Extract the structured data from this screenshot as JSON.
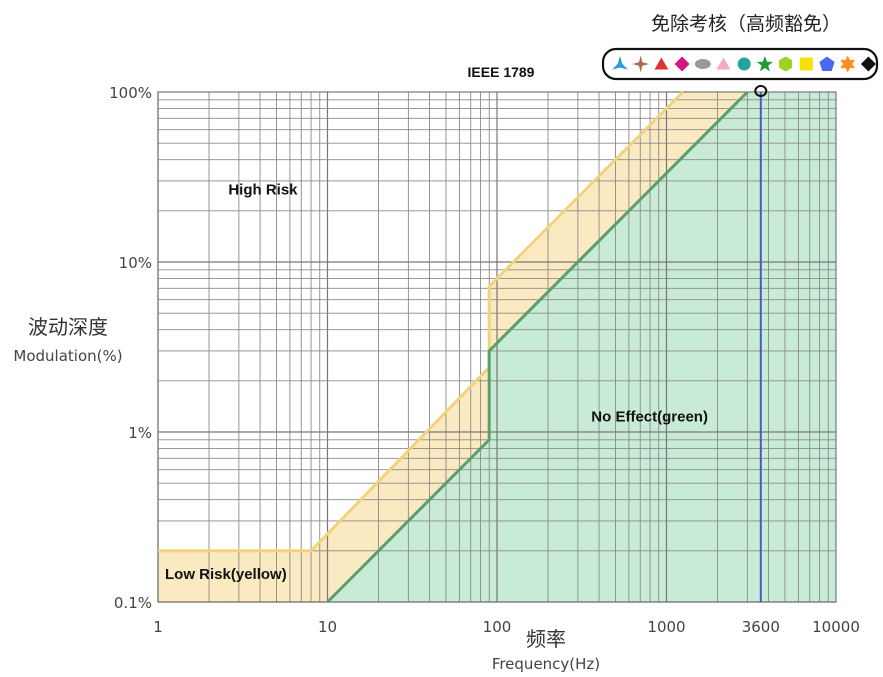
{
  "chart_data": {
    "type": "line",
    "title": "IEEE 1789",
    "x_scale": "log",
    "y_scale": "log",
    "xlim": [
      1,
      10000
    ],
    "ylim": [
      0.1,
      100
    ],
    "x_ticks": [
      {
        "value": 1,
        "label": "1"
      },
      {
        "value": 10,
        "label": "10"
      },
      {
        "value": 100,
        "label": "100"
      },
      {
        "value": 1000,
        "label": "1000"
      },
      {
        "value": 3600,
        "label": "3600",
        "color": "#5b5bc8"
      },
      {
        "value": 10000,
        "label": "10000"
      }
    ],
    "y_ticks": [
      {
        "value": 0.1,
        "label": "0.1%"
      },
      {
        "value": 1,
        "label": "1%"
      },
      {
        "value": 10,
        "label": "10%"
      },
      {
        "value": 100,
        "label": "100%"
      }
    ],
    "xlabel_cn": "频率",
    "xlabel": "Frequency(Hz)",
    "ylabel_cn": "波动深度",
    "ylabel": "Modulation(%)",
    "grid": true,
    "series": [
      {
        "role": "low-risk-boundary",
        "color": "#f2d27c",
        "points": [
          [
            1,
            0.2
          ],
          [
            8,
            0.2
          ],
          [
            90,
            2.4
          ],
          [
            90,
            7.2
          ],
          [
            1250,
            100
          ]
        ]
      },
      {
        "role": "no-effect-boundary",
        "color": "#5c9e6c",
        "points": [
          [
            10,
            0.1
          ],
          [
            90,
            0.9
          ],
          [
            90,
            3
          ],
          [
            3000,
            100
          ]
        ]
      }
    ],
    "regions": [
      {
        "label": "High Risk",
        "x": 2.6,
        "y": 25
      },
      {
        "label": "Low Risk(yellow)",
        "x": 1.1,
        "y": 0.137
      },
      {
        "label": "No Effect(green)",
        "x": 360,
        "y": 1.15
      }
    ],
    "marker": {
      "x": 3600,
      "y": 100,
      "line_color": "#4a5ac0"
    },
    "region_colors": {
      "low_risk": "#fbe9c2",
      "no_effect": "#c8ebd6"
    }
  },
  "legend": {
    "title": "免除考核（高频豁免）",
    "icons": [
      {
        "name": "blue-tri-star-icon",
        "color": "#2b9be0"
      },
      {
        "name": "brown-four-star-icon",
        "color": "#a86a4e"
      },
      {
        "name": "red-triangle-icon",
        "color": "#e03030"
      },
      {
        "name": "magenta-diamond-icon",
        "color": "#d0187a"
      },
      {
        "name": "gray-ellipse-icon",
        "color": "#9a9a9a"
      },
      {
        "name": "pink-triangle-icon",
        "color": "#f6a6c8"
      },
      {
        "name": "teal-circle-icon",
        "color": "#23a39a"
      },
      {
        "name": "green-star-icon",
        "color": "#1f9a3a"
      },
      {
        "name": "lime-hexagon-icon",
        "color": "#a0d020"
      },
      {
        "name": "yellow-square-icon",
        "color": "#f8e000"
      },
      {
        "name": "blue-pentagon-icon",
        "color": "#4a68f0"
      },
      {
        "name": "orange-sun-star-icon",
        "color": "#f89020"
      },
      {
        "name": "black-diamond-icon",
        "color": "#111111"
      }
    ]
  }
}
